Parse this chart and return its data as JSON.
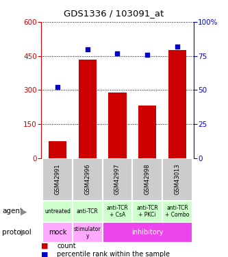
{
  "title": "GDS1336 / 103091_at",
  "samples": [
    "GSM42991",
    "GSM42996",
    "GSM42997",
    "GSM42998",
    "GSM43013"
  ],
  "counts": [
    75,
    435,
    290,
    230,
    475
  ],
  "percentiles": [
    52,
    80,
    77,
    76,
    82
  ],
  "percentile_max": 100,
  "count_max": 600,
  "count_ticks": [
    0,
    150,
    300,
    450,
    600
  ],
  "percentile_ticks": [
    0,
    25,
    50,
    75,
    100
  ],
  "bar_color": "#cc0000",
  "dot_color": "#0000cc",
  "agent_labels": [
    "untreated",
    "anti-TCR",
    "anti-TCR\n+ CsA",
    "anti-TCR\n+ PKCi",
    "anti-TCR\n+ Combo"
  ],
  "agent_bg": "#ccffcc",
  "sample_bg": "#cccccc",
  "proto_mock_bg": "#ffaaff",
  "proto_stim_bg": "#ffaaff",
  "proto_inhib_bg": "#ee44ee",
  "legend_count_color": "#cc0000",
  "legend_pct_color": "#0000cc"
}
